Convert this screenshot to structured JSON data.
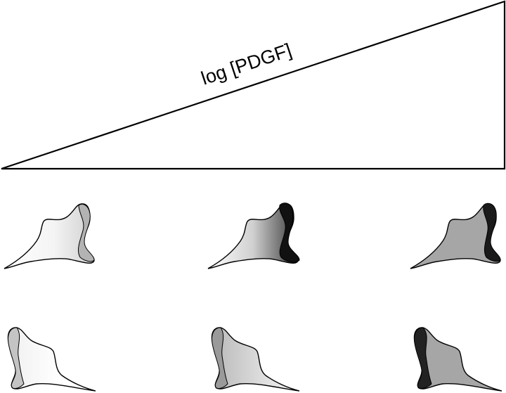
{
  "gradient": {
    "label": "log [PDGF]"
  },
  "colors": {
    "outline": "#000000",
    "light_fill": "#ffffff",
    "mid_fill": "#a6a6a6",
    "dark_edge": "#1a1a1a",
    "light_edge": "#b3b3b3"
  },
  "cells": {
    "top_row": [
      "low-edge-light",
      "mid-edge-dark",
      "high-uniform-gray"
    ],
    "bottom_row": [
      "low-rear-light",
      "mid-rear-gray",
      "high-rear-dark"
    ]
  }
}
